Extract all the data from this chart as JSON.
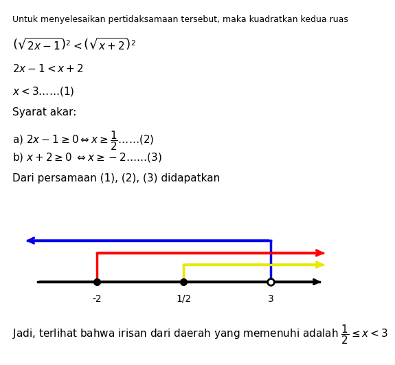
{
  "title_text": "Untuk menyelesaikan pertidaksamaan tersebut, maka kuadratkan kedua ruas",
  "line1": "$\\left(\\sqrt{2x-1}\\right)^2 < \\left(\\sqrt{x+2}\\right)^2$",
  "line2": "$2x - 1 < x + 2$",
  "line3": "$x < 3 \\ldots\\ldots(1)$",
  "line4": "Syarat akar:",
  "line5a": "a) $2x - 1 \\geq 0 \\Leftrightarrow x \\geq \\dfrac{1}{2}\\ldots\\ldots(2)$",
  "line5b": "b) $x + 2 \\geq 0 \\;\\Leftrightarrow x \\geq -2 \\ldots\\ldots(3)$",
  "line6": "Dari persamaan (1), (2), (3) didapatkan",
  "line7": "Jadi, terlihat bahwa irisan dari daerah yang memenuhi adalah $\\dfrac{1}{2} \\leq x < 3$",
  "points": [
    -2,
    0.5,
    3
  ],
  "point_filled": [
    true,
    true,
    false
  ],
  "point_labels": [
    "-2",
    "1/2",
    "3"
  ],
  "bg_color": "#ffffff",
  "text_color": "#000000",
  "arrow_blue_color": "#0000ee",
  "arrow_red_color": "#ff0000",
  "arrow_yellow_color": "#e8e800",
  "number_line_color": "#000000",
  "font_size_small": 9,
  "font_size_main": 11
}
